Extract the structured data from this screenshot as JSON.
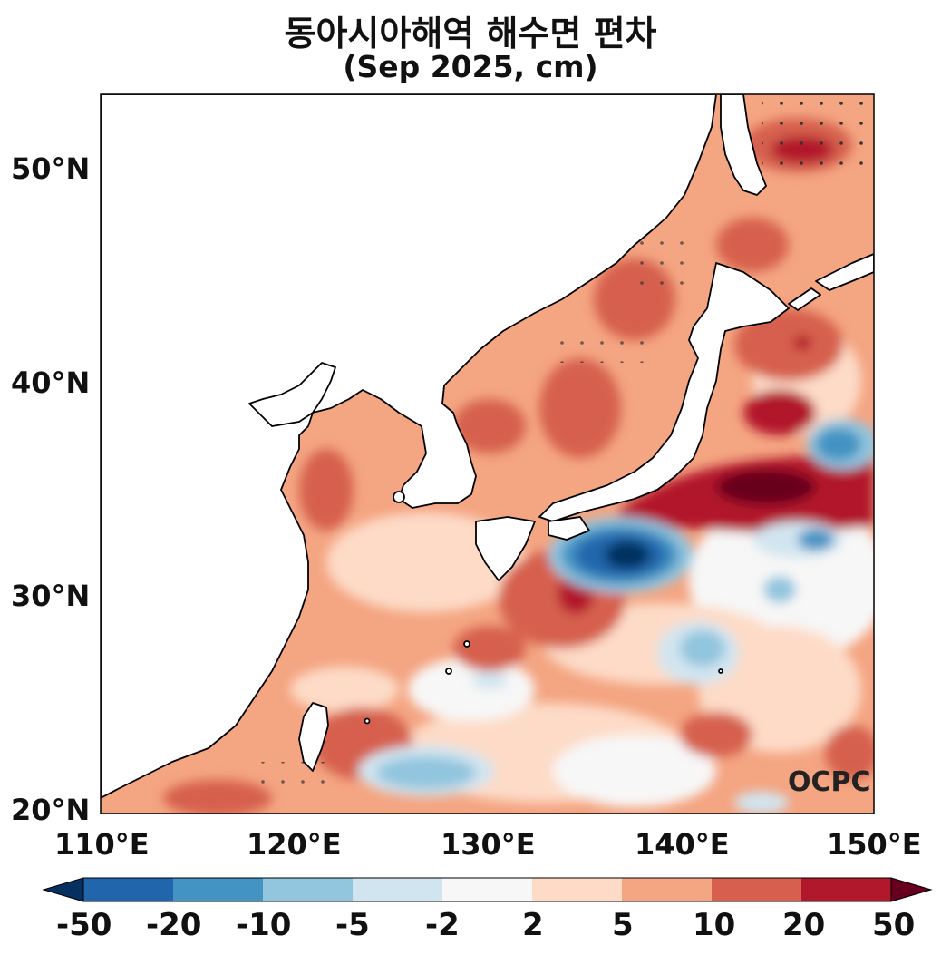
{
  "title_line1": "동아시아해역 해수면 편차",
  "title_line2": "(Sep 2025, cm)",
  "lat_ticks": [
    "50°N",
    "40°N",
    "30°N",
    "20°N"
  ],
  "lon_ticks": [
    "110°E",
    "120°E",
    "130°E",
    "140°E",
    "150°E"
  ],
  "watermark": "OCPC",
  "colorbar": {
    "labels": [
      "-50",
      "-20",
      "-10",
      "-5",
      "-2",
      "2",
      "5",
      "10",
      "20",
      "50"
    ],
    "colors": [
      "#053061",
      "#2166ac",
      "#4393c3",
      "#92c5de",
      "#d1e5f0",
      "#f7f7f7",
      "#fddbc7",
      "#f4a582",
      "#d6604d",
      "#b2182b",
      "#67001f"
    ]
  }
}
